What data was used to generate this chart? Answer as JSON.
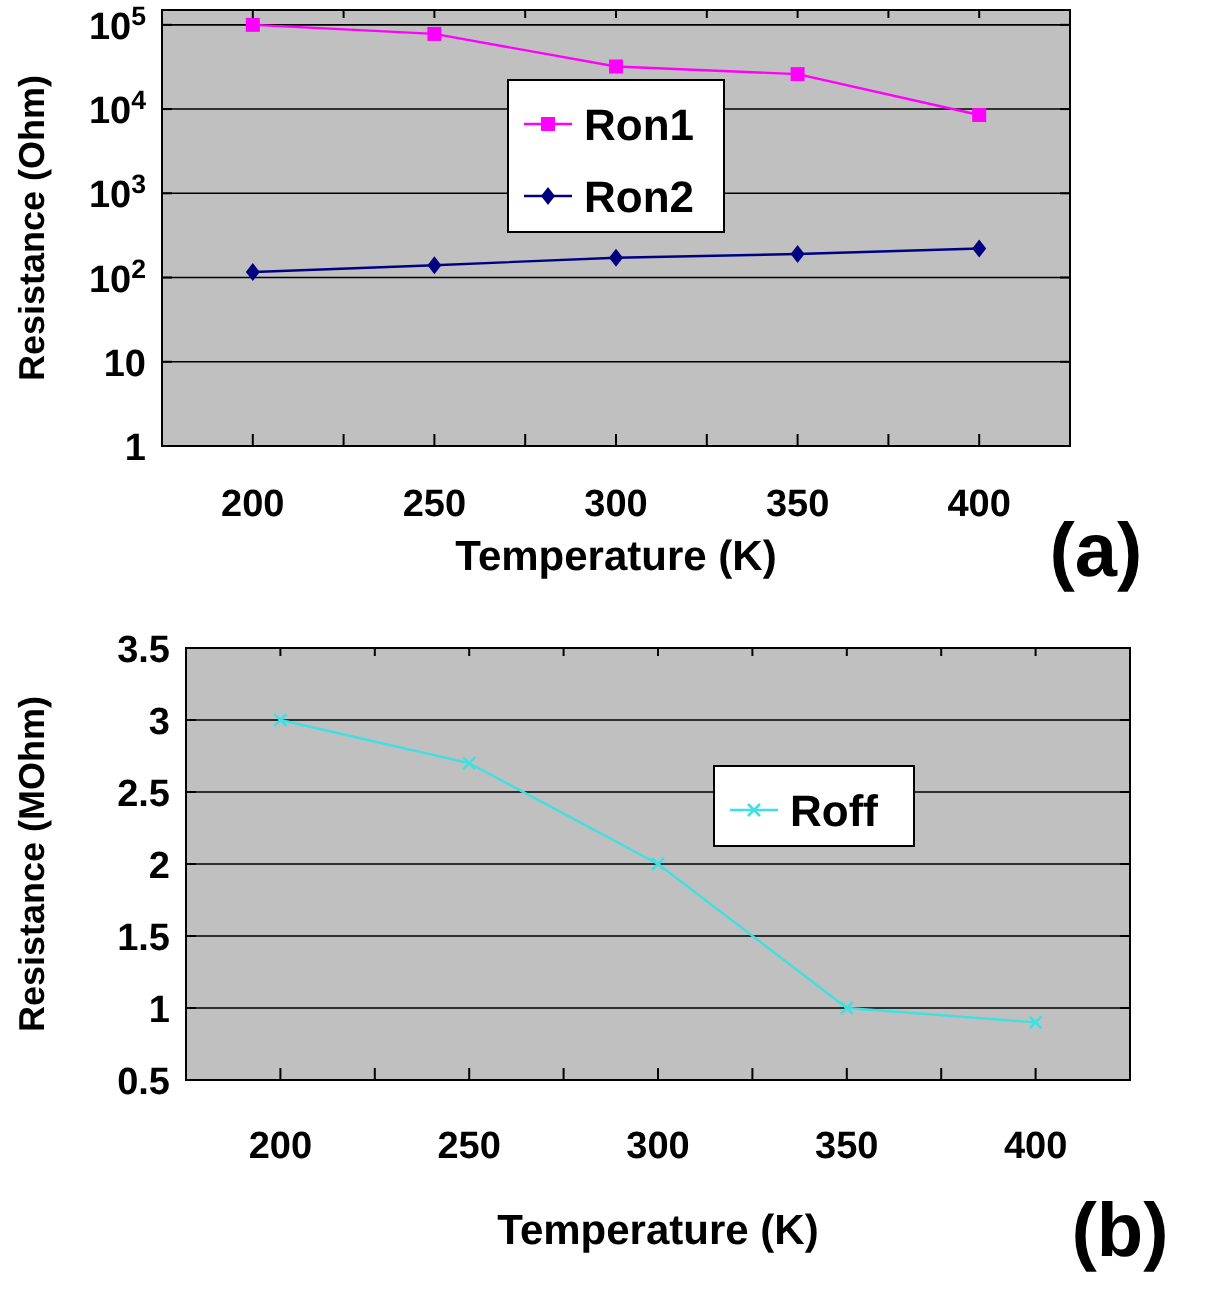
{
  "chart_data": [
    {
      "type": "line",
      "xlabel": "Temperature (K)",
      "ylabel": "Resistance (Ohm)",
      "x": [
        200,
        250,
        300,
        350,
        400
      ],
      "log": "y",
      "xlim": [
        175,
        425
      ],
      "ylim": [
        1,
        150000
      ],
      "xticks": [
        200,
        {
          "value": 225,
          "label": null
        },
        250,
        {
          "value": 275,
          "label": null
        },
        300,
        {
          "value": 325,
          "label": null
        },
        350,
        {
          "value": 375,
          "label": null
        },
        400
      ],
      "yticks": [
        1,
        10,
        {
          "value": 100,
          "label": "10$^{2}$"
        },
        {
          "value": 1000,
          "label": "10$^{3}$"
        },
        {
          "value": 10000,
          "label": "10$^{4}$"
        },
        {
          "value": 100000,
          "label": "10$^{5}$"
        }
      ],
      "grid": "y",
      "legend": "top",
      "series": [
        {
          "name": "Ron1",
          "color": "#ff00ff",
          "marker": "square",
          "values": [
            100000,
            78000,
            32000,
            26000,
            8500
          ]
        },
        {
          "name": "Ron2",
          "color": "#000080",
          "marker": "diamond",
          "values": [
            116,
            140,
            172,
            190,
            221
          ]
        }
      ],
      "annotations": [
        "(a)"
      ]
    },
    {
      "type": "line",
      "xlabel": "Temperature (K)",
      "ylabel": "Resistance (MOhm)",
      "x": [
        200,
        250,
        300,
        350,
        400
      ],
      "xlim": [
        175,
        425
      ],
      "ylim": [
        0.5,
        3.5
      ],
      "xticks": [
        200,
        {
          "value": 225,
          "label": null
        },
        250,
        {
          "value": 275,
          "label": null
        },
        300,
        {
          "value": 325,
          "label": null
        },
        350,
        {
          "value": 375,
          "label": null
        },
        400
      ],
      "yticks": [
        0.5,
        1,
        1.5,
        2,
        2.5,
        3,
        3.5
      ],
      "grid": "y",
      "legend": "top right",
      "series": [
        {
          "name": "Roff",
          "color": "#40e0e0",
          "marker": "cross",
          "values": [
            3.0,
            2.7,
            2.0,
            1.0,
            0.9
          ]
        }
      ],
      "annotations": [
        "(b)"
      ]
    }
  ]
}
